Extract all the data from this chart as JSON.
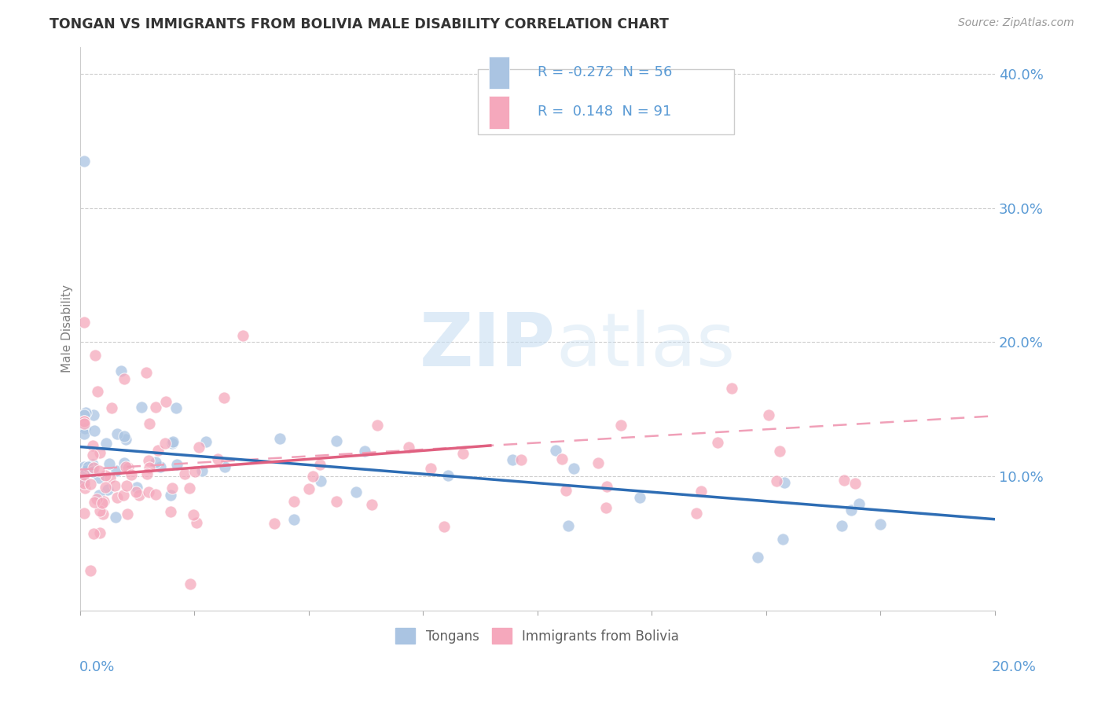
{
  "title": "TONGAN VS IMMIGRANTS FROM BOLIVIA MALE DISABILITY CORRELATION CHART",
  "source": "Source: ZipAtlas.com",
  "ylabel": "Male Disability",
  "watermark_zip": "ZIP",
  "watermark_atlas": "atlas",
  "legend_tongans": "Tongans",
  "legend_bolivia": "Immigrants from Bolivia",
  "r_tongans": -0.272,
  "n_tongans": 56,
  "r_bolivia": 0.148,
  "n_bolivia": 91,
  "color_tongans": "#aac4e2",
  "color_bolivia": "#f5a8bc",
  "color_tongans_line": "#2e6db4",
  "color_bolivia_line": "#e06080",
  "color_bolivia_dashed": "#f0a0b8",
  "xlim": [
    0.0,
    0.2
  ],
  "ylim": [
    0.0,
    0.42
  ],
  "yticks": [
    0.1,
    0.2,
    0.3,
    0.4
  ],
  "ytick_labels": [
    "10.0%",
    "20.0%",
    "30.0%",
    "40.0%"
  ],
  "background_color": "#ffffff",
  "grid_color": "#c8c8c8",
  "title_color": "#333333",
  "axis_color": "#5b9bd5",
  "label_color": "#808080"
}
